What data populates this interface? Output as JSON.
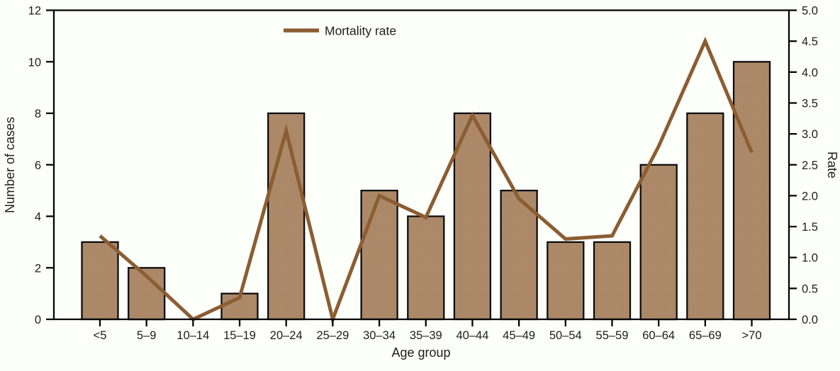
{
  "legend": {
    "label": "Mortality rate"
  },
  "colors": {
    "background": "#fdfffb",
    "bar_fill": "#ad8a6a",
    "bar_texture_dot": "#94704c",
    "bar_edge": "#0a0a0a",
    "line": "#8b5d32",
    "axis": "#000000",
    "text": "#1e1c1c"
  },
  "chart_data": {
    "type": "bar+line combo",
    "categories": [
      "<5",
      "5–9",
      "10–14",
      "15–19",
      "20–24",
      "25–29",
      "30–34",
      "35–39",
      "40–44",
      "45–49",
      "50–54",
      "55–59",
      "60–64",
      "65–69",
      ">70"
    ],
    "series": [
      {
        "name": "Number of cases",
        "type": "bar",
        "axis": "left",
        "values": [
          3,
          2,
          0,
          1,
          8,
          0,
          5,
          4,
          8,
          5,
          3,
          3,
          6,
          8,
          10
        ]
      },
      {
        "name": "Mortality rate",
        "type": "line",
        "axis": "right",
        "values": [
          1.35,
          0.7,
          0,
          0.35,
          3.05,
          0,
          2.0,
          1.65,
          3.3,
          1.95,
          1.3,
          1.35,
          2.8,
          4.5,
          2.7
        ]
      }
    ],
    "xlabel": "Age group",
    "left_axis": {
      "label": "Number of cases",
      "min": 0,
      "max": 12,
      "tick_step": 2,
      "ticks": [
        "0",
        "2",
        "4",
        "6",
        "8",
        "10",
        "12"
      ]
    },
    "right_axis": {
      "label": "Rate",
      "min": 0,
      "max": 5,
      "tick_step": 0.5,
      "ticks": [
        "0.0",
        "0.5",
        "1.0",
        "1.5",
        "2.0",
        "2.5",
        "3.0",
        "3.5",
        "4.0",
        "4.5",
        "5.0"
      ]
    },
    "legend_position": "top-center",
    "grid": false,
    "plot_frame": "full box"
  }
}
